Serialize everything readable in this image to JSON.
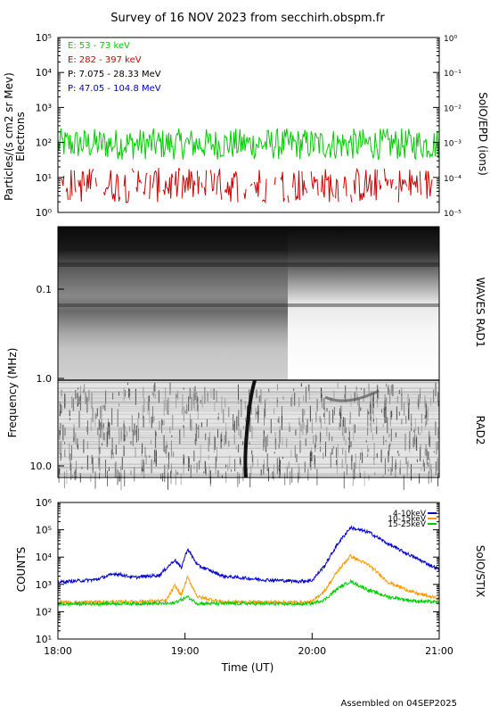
{
  "title": "Survey of 16 NOV 2023 from secchirh.obspm.fr",
  "footer": "Assembled on 04SEP2025",
  "chart_data": [
    {
      "type": "line",
      "panel": "SolO/EPD",
      "ylabel": "Particles/(s cm2 sr Mev)",
      "ylabel2": "Electrons",
      "right_label": "SolO/EPD (ions)",
      "y_scale": "log",
      "ylim": [
        1,
        100000
      ],
      "y_ticks": [
        "10⁰",
        "10¹",
        "10²",
        "10³",
        "10⁴",
        "10⁵"
      ],
      "y2_ticks": [
        "10⁻⁵",
        "10⁻⁴",
        "10⁻³",
        "10⁻²",
        "10⁻¹",
        "10⁰"
      ],
      "legend": [
        {
          "label": "E: 53 - 73 keV",
          "color": "#00cc00"
        },
        {
          "label": "E: 282 - 397 keV",
          "color": "#cc0000"
        },
        {
          "label": "P: 7.075 - 28.33 MeV",
          "color": "#000000"
        },
        {
          "label": "P: 47.05 - 104.8 MeV",
          "color": "#0000cc"
        }
      ],
      "series": [
        {
          "name": "E: 53 - 73 keV",
          "color": "#00cc00",
          "level": 90,
          "spread_decades": 0.45
        },
        {
          "name": "E: 282 - 397 keV",
          "color": "#cc0000",
          "level": 6,
          "spread_decades": 0.5,
          "gaps": [
            [
              20.95,
              21.0
            ]
          ]
        }
      ]
    },
    {
      "type": "heatmap",
      "panel": "WAVES",
      "ylabel": "Frequency (MHz)",
      "right_labels": [
        "WAVES RAD1",
        "RAD2"
      ],
      "y_ticks": [
        "0.1",
        "1.0",
        "10.0"
      ],
      "features": [
        {
          "name": "type III radio burst",
          "time_start": "19:28",
          "time_end": "19:32"
        },
        {
          "name": "weak burst",
          "time_start": "20:05",
          "time_end": "20:25"
        }
      ]
    },
    {
      "type": "line",
      "panel": "SolO/STIX",
      "ylabel": "COUNTS",
      "right_label": "SolO/STIX",
      "y_scale": "log",
      "ylim": [
        10,
        1000000
      ],
      "y_ticks": [
        "10¹",
        "10²",
        "10³",
        "10⁴",
        "10⁵",
        "10⁶"
      ],
      "xlabel": "Time (UT)",
      "x_ticks": [
        "18:00",
        "19:00",
        "20:00",
        "21:00"
      ],
      "legend": [
        {
          "label": "4-10keV",
          "color": "#0000cc"
        },
        {
          "label": "10-15keV",
          "color": "#ff9900"
        },
        {
          "label": "15-25keV",
          "color": "#00cc00"
        }
      ],
      "series": [
        {
          "name": "4-10keV",
          "color": "#0000cc",
          "t": [
            18.0,
            18.3,
            18.45,
            18.6,
            18.8,
            18.92,
            18.97,
            19.02,
            19.1,
            19.3,
            19.6,
            19.9,
            20.0,
            20.1,
            20.2,
            20.3,
            20.45,
            20.6,
            20.8,
            21.0
          ],
          "v": [
            1200,
            1500,
            2500,
            1800,
            2200,
            8000,
            4000,
            20000,
            5000,
            2000,
            1500,
            1300,
            1400,
            5000,
            30000,
            120000,
            80000,
            30000,
            10000,
            3500
          ]
        },
        {
          "name": "10-15keV",
          "color": "#ff9900",
          "t": [
            18.0,
            18.5,
            18.85,
            18.92,
            18.97,
            19.02,
            19.1,
            19.3,
            19.9,
            20.0,
            20.1,
            20.2,
            20.3,
            20.45,
            20.6,
            20.8,
            21.0
          ],
          "v": [
            220,
            230,
            250,
            900,
            400,
            1800,
            350,
            230,
            220,
            230,
            600,
            3000,
            11000,
            5000,
            1200,
            500,
            300
          ]
        },
        {
          "name": "15-25keV",
          "color": "#00cc00",
          "t": [
            18.0,
            18.5,
            18.9,
            19.02,
            19.1,
            19.5,
            19.9,
            20.0,
            20.1,
            20.2,
            20.3,
            20.45,
            20.6,
            20.8,
            21.0
          ],
          "v": [
            190,
            200,
            200,
            350,
            200,
            200,
            190,
            200,
            280,
            700,
            1300,
            600,
            350,
            250,
            220
          ]
        }
      ]
    }
  ]
}
